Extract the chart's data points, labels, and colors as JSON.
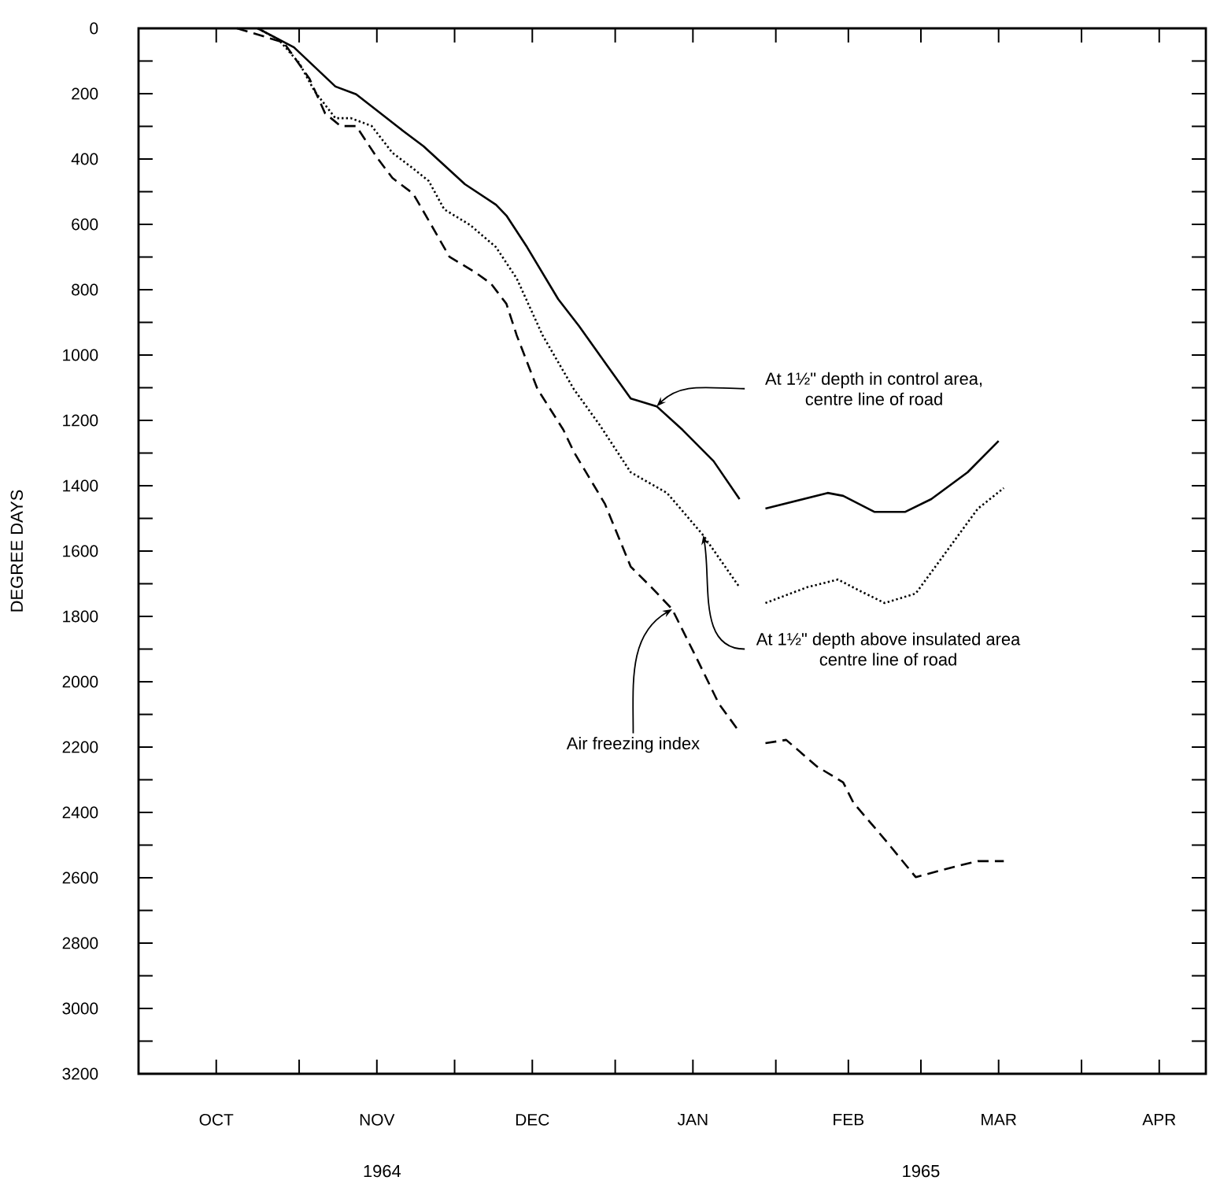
{
  "chart_data": {
    "type": "line",
    "ylabel": "DEGREE DAYS",
    "xlim": [
      "1964-10-01",
      "1965-04-25"
    ],
    "ylim": [
      3200,
      0
    ],
    "xticks": [
      {
        "value": "1964-10-16",
        "label": "OCT"
      },
      {
        "value": "1964-11-01",
        "label": null
      },
      {
        "value": "1964-11-16",
        "label": "NOV"
      },
      {
        "value": "1964-12-01",
        "label": null
      },
      {
        "value": "1964-12-16",
        "label": "DEC"
      },
      {
        "value": "1965-01-01",
        "label": null
      },
      {
        "value": "1965-01-16",
        "label": "JAN"
      },
      {
        "value": "1965-02-01",
        "label": null
      },
      {
        "value": "1965-02-15",
        "label": "FEB"
      },
      {
        "value": "1965-03-01",
        "label": null
      },
      {
        "value": "1965-03-16",
        "label": "MAR"
      },
      {
        "value": "1965-04-01",
        "label": null
      },
      {
        "value": "1965-04-16",
        "label": "APR"
      }
    ],
    "yticks": [
      0,
      {
        "value": 100,
        "label": null
      },
      200,
      {
        "value": 300,
        "label": null
      },
      400,
      {
        "value": 500,
        "label": null
      },
      600,
      {
        "value": 700,
        "label": null
      },
      800,
      {
        "value": 900,
        "label": null
      },
      1000,
      {
        "value": 1100,
        "label": null
      },
      1200,
      {
        "value": 1300,
        "label": null
      },
      1400,
      {
        "value": 1500,
        "label": null
      },
      1600,
      {
        "value": 1700,
        "label": null
      },
      1800,
      {
        "value": 1900,
        "label": null
      },
      2000,
      {
        "value": 2100,
        "label": null
      },
      2200,
      {
        "value": 2300,
        "label": null
      },
      2400,
      {
        "value": 2500,
        "label": null
      },
      2600,
      {
        "value": 2700,
        "label": null
      },
      2800,
      {
        "value": 2900,
        "label": null
      },
      3000,
      {
        "value": 3100,
        "label": null
      },
      3200
    ],
    "annotations": [
      "1964",
      "1965"
    ],
    "series": [
      {
        "name": "At 1½\" depth in control area, centre line of road",
        "color": "#000000",
        "line_style": "solid",
        "x": [
          "1964-10-24",
          "1964-10-31",
          "1964-11-08",
          "1964-11-12",
          "1964-11-16",
          "1964-11-21",
          "1964-11-25",
          "1964-12-03",
          "1964-12-09",
          "1964-12-11",
          "1964-12-15",
          "1964-12-21",
          "1964-12-25",
          "1964-12-30",
          "1965-01-04",
          "1965-01-09",
          "1965-01-14",
          "1965-01-20",
          "1965-01-25",
          "1965-01-28",
          "1965-01-30",
          "1965-02-11",
          "1965-02-14",
          "1965-02-20",
          "1965-02-26",
          "1965-03-03",
          "1965-03-10",
          "1965-03-16"
        ],
        "values": [
          0,
          58,
          178,
          202,
          251,
          313,
          361,
          477,
          540,
          573,
          670,
          829,
          911,
          1022,
          1133,
          1157,
          1229,
          1325,
          1441,
          null,
          1470,
          1422,
          1431,
          1480,
          1480,
          1441,
          1359,
          1263
        ]
      },
      {
        "name": "At 1½\" depth above insulated area centre line of road",
        "color": "#000000",
        "line_style": "dotted",
        "x": [
          "1964-10-24",
          "1964-10-28",
          "1964-11-01",
          "1964-11-04",
          "1964-11-08",
          "1964-11-11",
          "1964-11-15",
          "1964-11-19",
          "1964-11-23",
          "1964-11-26",
          "1964-11-29",
          "1964-12-04",
          "1964-12-09",
          "1964-12-13",
          "1964-12-18",
          "1964-12-24",
          "1964-12-29",
          "1965-01-04",
          "1965-01-11",
          "1965-01-18",
          "1965-01-25",
          "1965-01-28",
          "1965-01-30",
          "1965-02-07",
          "1965-02-13",
          "1965-02-17",
          "1965-02-22",
          "1965-02-28",
          "1965-03-06",
          "1965-03-12",
          "1965-03-17"
        ],
        "values": [
          0,
          34,
          106,
          193,
          275,
          275,
          299,
          381,
          429,
          467,
          554,
          602,
          670,
          766,
          940,
          1104,
          1214,
          1359,
          1422,
          1552,
          1711,
          null,
          1759,
          1711,
          1687,
          1720,
          1759,
          1730,
          1600,
          1470,
          1407
        ]
      },
      {
        "name": "Air freezing index",
        "color": "#000000",
        "line_style": "dashed",
        "x": [
          "1964-10-20",
          "1964-10-29",
          "1964-11-03",
          "1964-11-06",
          "1964-11-09",
          "1964-11-12",
          "1964-11-16",
          "1964-11-19",
          "1964-11-23",
          "1964-11-26",
          "1964-11-30",
          "1964-12-05",
          "1964-12-08",
          "1964-12-11",
          "1964-12-13",
          "1964-12-17",
          "1964-12-22",
          "1964-12-24",
          "1964-12-30",
          "1965-01-04",
          "1965-01-08",
          "1965-01-12",
          "1965-01-17",
          "1965-01-21",
          "1965-01-25",
          "1965-01-28",
          "1965-01-30",
          "1965-02-03",
          "1965-02-09",
          "1965-02-14",
          "1965-02-16",
          "1965-02-22",
          "1965-02-28",
          "1965-03-08",
          "1965-03-12",
          "1965-03-17"
        ],
        "values": [
          0,
          43,
          154,
          260,
          299,
          299,
          395,
          458,
          506,
          588,
          699,
          747,
          781,
          843,
          940,
          1104,
          1229,
          1296,
          1455,
          1648,
          1711,
          1778,
          1937,
          2067,
          2154,
          null,
          2188,
          2178,
          2260,
          2308,
          2371,
          2482,
          2598,
          2564,
          2549,
          2549
        ]
      }
    ]
  }
}
